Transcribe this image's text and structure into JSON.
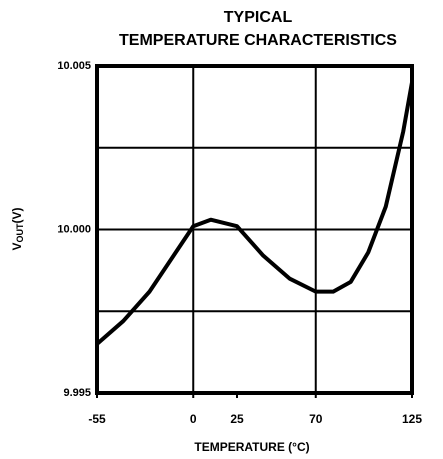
{
  "chart_data": {
    "type": "line",
    "title": [
      "TYPICAL",
      "TEMPERATURE CHARACTERISTICS"
    ],
    "ylabel": [
      "V",
      "OUT",
      "(V)"
    ],
    "xlabel": "TEMPERATURE (°C)",
    "x": [
      -55,
      -40,
      -25,
      -10,
      0,
      10,
      25,
      40,
      55,
      70,
      80,
      90,
      100,
      110,
      120,
      125
    ],
    "series": [
      {
        "name": "VOUT",
        "color": "#000000",
        "values": [
          9.9965,
          9.9972,
          9.9981,
          9.9993,
          10.0001,
          10.0003,
          10.0001,
          9.9992,
          9.9985,
          9.9981,
          9.9981,
          9.9984,
          9.9993,
          10.0007,
          10.003,
          10.0045
        ]
      }
    ],
    "xlim": [
      -55,
      125
    ],
    "xticks": [
      -55,
      0,
      25,
      70,
      125
    ],
    "ylim": [
      9.995,
      10.005
    ],
    "yticks": [
      9.995,
      {
        "value": 10,
        "label": "10.000"
      },
      10.005
    ],
    "xgrid": [
      0,
      70
    ],
    "ygrid": [
      9.9975,
      10.0025
    ],
    "grid": true
  }
}
